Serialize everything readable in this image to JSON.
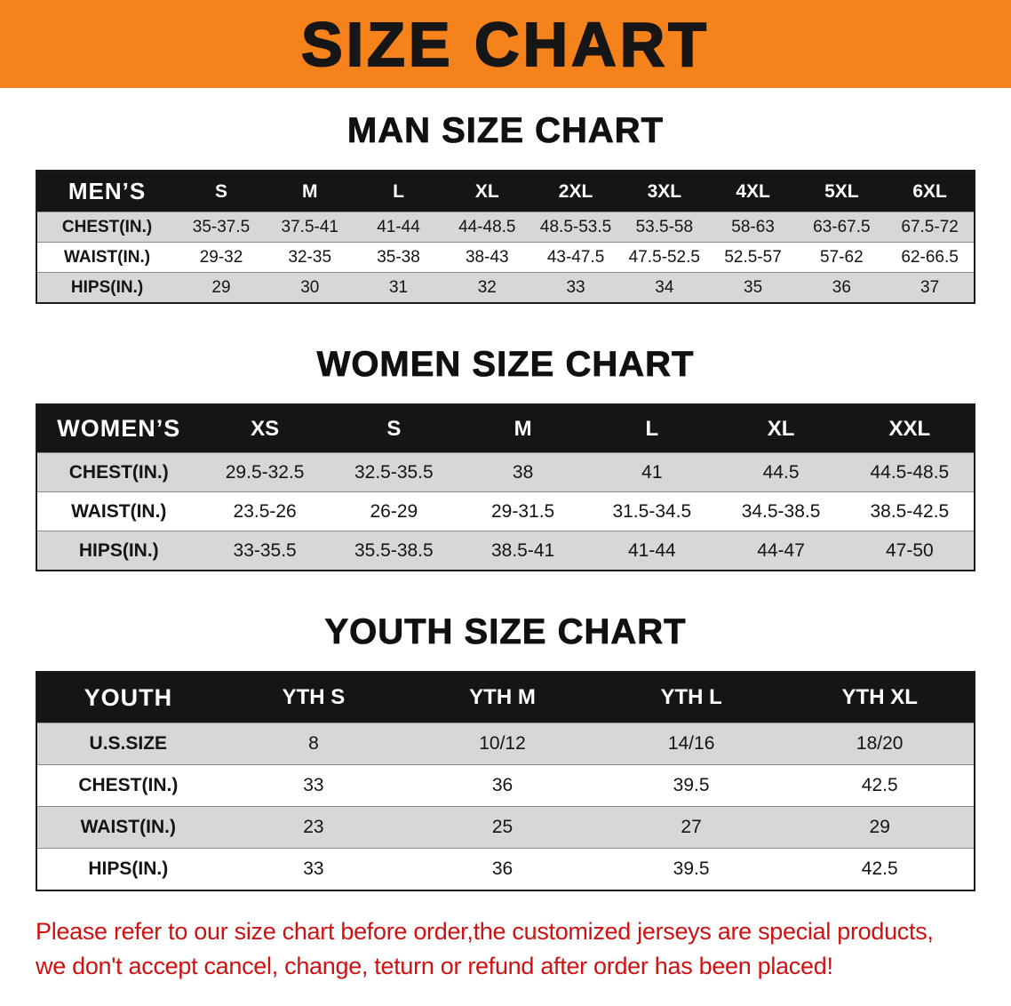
{
  "banner": {
    "title": "SIZE CHART"
  },
  "colors": {
    "banner-bg": "#f6821c",
    "header-bg": "#151515",
    "row-gray": "#d7d7d7",
    "disclaimer-red": "#cf1111"
  },
  "tables": [
    {
      "id": "mens",
      "heading": "MAN SIZE CHART",
      "header": [
        "MEN’S",
        "S",
        "M",
        "L",
        "XL",
        "2XL",
        "3XL",
        "4XL",
        "5XL",
        "6XL"
      ],
      "rows": [
        [
          "CHEST(IN.)",
          "35-37.5",
          "37.5-41",
          "41-44",
          "44-48.5",
          "48.5-53.5",
          "53.5-58",
          "58-63",
          "63-67.5",
          "67.5-72"
        ],
        [
          "WAIST(IN.)",
          "29-32",
          "32-35",
          "35-38",
          "38-43",
          "43-47.5",
          "47.5-52.5",
          "52.5-57",
          "57-62",
          "62-66.5"
        ],
        [
          "HIPS(IN.)",
          "29",
          "30",
          "31",
          "32",
          "33",
          "34",
          "35",
          "36",
          "37"
        ]
      ]
    },
    {
      "id": "womens",
      "heading": "WOMEN SIZE CHART",
      "header": [
        "WOMEN’S",
        "XS",
        "S",
        "M",
        "L",
        "XL",
        "XXL"
      ],
      "rows": [
        [
          "CHEST(IN.)",
          "29.5-32.5",
          "32.5-35.5",
          "38",
          "41",
          "44.5",
          "44.5-48.5"
        ],
        [
          "WAIST(IN.)",
          "23.5-26",
          "26-29",
          "29-31.5",
          "31.5-34.5",
          "34.5-38.5",
          "38.5-42.5"
        ],
        [
          "HIPS(IN.)",
          "33-35.5",
          "35.5-38.5",
          "38.5-41",
          "41-44",
          "44-47",
          "47-50"
        ]
      ]
    },
    {
      "id": "youth",
      "heading": "YOUTH SIZE CHART",
      "header": [
        "YOUTH",
        "YTH S",
        "YTH M",
        "YTH L",
        "YTH XL"
      ],
      "rows": [
        [
          "U.S.SIZE",
          "8",
          "10/12",
          "14/16",
          "18/20"
        ],
        [
          "CHEST(IN.)",
          "33",
          "36",
          "39.5",
          "42.5"
        ],
        [
          "WAIST(IN.)",
          "23",
          "25",
          "27",
          "29"
        ],
        [
          "HIPS(IN.)",
          "33",
          "36",
          "39.5",
          "42.5"
        ]
      ]
    }
  ],
  "disclaimer": {
    "line1": "Please refer to our size chart before order,the customized jerseys are special products,",
    "line2": "we don't accept cancel, change, teturn or refund after order has been placed!"
  }
}
